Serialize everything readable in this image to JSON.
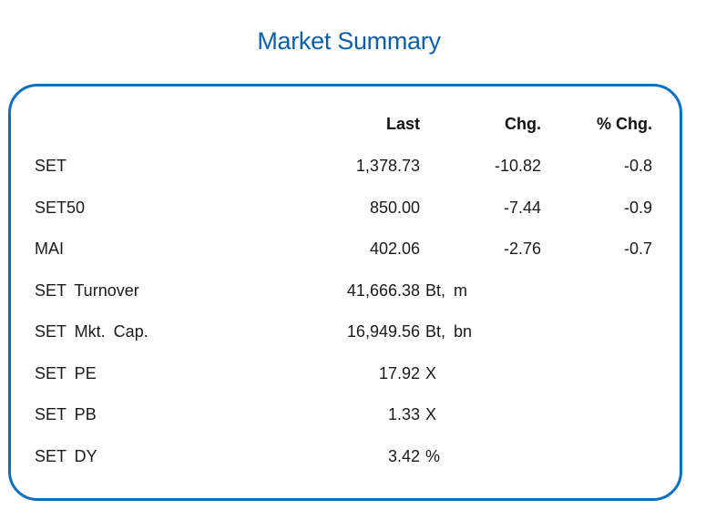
{
  "title": "Market Summary",
  "headers": {
    "last": "Last",
    "chg": "Chg.",
    "pct_chg": "% Chg."
  },
  "indices": [
    {
      "name": "SET",
      "last": "1,378.73",
      "chg": "-10.82",
      "pct_chg": "-0.8"
    },
    {
      "name": "SET50",
      "last": "850.00",
      "chg": "-7.44",
      "pct_chg": "-0.9"
    },
    {
      "name": "MAI",
      "last": "402.06",
      "chg": "-2.76",
      "pct_chg": "-0.7"
    }
  ],
  "stats": [
    {
      "name": "SET Turnover",
      "value": "41,666.38",
      "unit": "Bt, m"
    },
    {
      "name": "SET Mkt. Cap.",
      "value": "16,949.56",
      "unit": "Bt, bn"
    },
    {
      "name": "SET PE",
      "value": "17.92",
      "unit": "X"
    },
    {
      "name": "SET PB",
      "value": "1.33",
      "unit": "X"
    },
    {
      "name": "SET DY",
      "value": "3.42",
      "unit": "%"
    }
  ],
  "colors": {
    "title": "#0b5fa8",
    "border": "#0b6fc0"
  }
}
